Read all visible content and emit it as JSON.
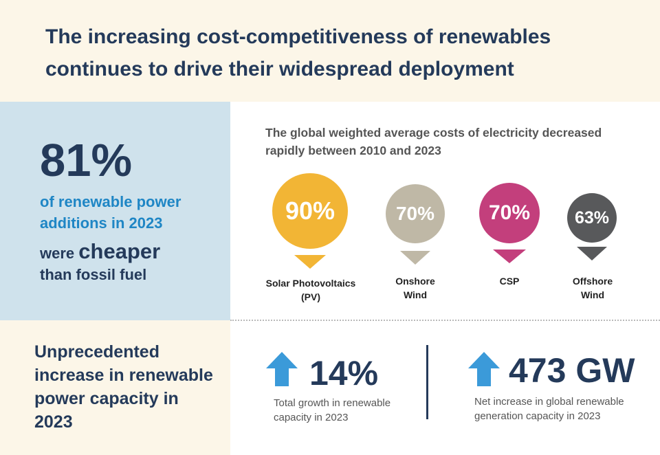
{
  "header": {
    "title": "The increasing cost-competitiveness of renewables continues to drive their widespread deployment"
  },
  "highlight": {
    "percent": "81%",
    "line": "of renewable power additions in 2023",
    "were": "were",
    "cheaper": "cheaper",
    "than": "than fossil fuel"
  },
  "costs": {
    "subtitle": "The global weighted average costs of electricity decreased rapidly between 2010 and 2023",
    "items": [
      {
        "value": "90%",
        "label": "Solar Photovoltaics (PV)",
        "color": "#f2b535"
      },
      {
        "value": "70%",
        "label": "Onshore Wind",
        "color": "#bfb8a6"
      },
      {
        "value": "70%",
        "label": "CSP",
        "color": "#c33f7c"
      },
      {
        "value": "63%",
        "label": "Offshore Wind",
        "color": "#58595b"
      }
    ]
  },
  "capacity": {
    "title": "Unprecedented increase in renewable power capacity in 2023",
    "arrow_color": "#3b9ad9",
    "stats": [
      {
        "value": "14%",
        "desc": "Total growth in renewable capacity in 2023"
      },
      {
        "value": "473 GW",
        "desc": "Net increase in global renewable generation capacity in 2023"
      }
    ]
  }
}
